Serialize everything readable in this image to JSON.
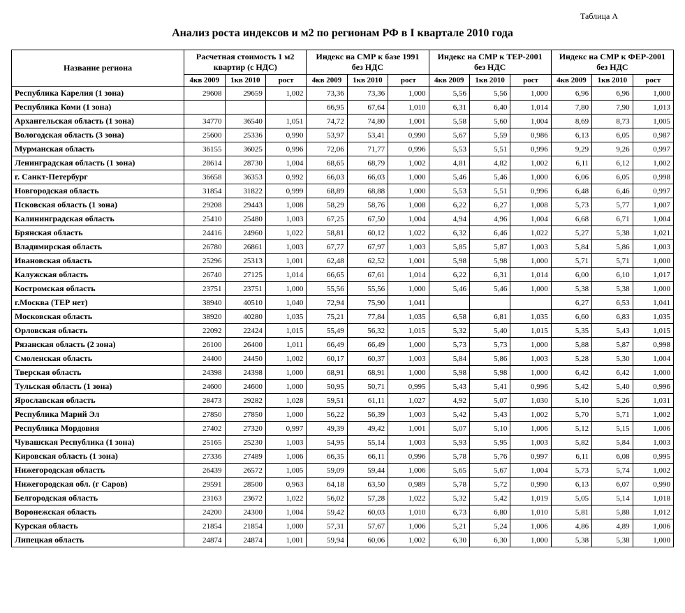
{
  "tableLabel": "Таблица А",
  "title": "Анализ роста индексов и м2 по регионам РФ в I квартале 2010 года",
  "headers": {
    "region": "Название региона",
    "groups": [
      "Расчетная стоимость         1 м2 квартир (с НДС)",
      "Индекс на СМР к базе 1991 без НДС",
      "Индекс на СМР к ТЕР-2001 без НДС",
      "Индекс на СМР к ФЕР-2001 без НДС"
    ],
    "sub": [
      "4кв 2009",
      "1кв 2010",
      "рост"
    ]
  },
  "rows": [
    {
      "region": "Республика Карелия (1 зона)",
      "cells": [
        "29608",
        "29659",
        "1,002",
        "73,36",
        "73,36",
        "1,000",
        "5,56",
        "5,56",
        "1,000",
        "6,96",
        "6,96",
        "1,000"
      ]
    },
    {
      "region": "Республика Коми (1 зона)",
      "cells": [
        "",
        "",
        "",
        "66,95",
        "67,64",
        "1,010",
        "6,31",
        "6,40",
        "1,014",
        "7,80",
        "7,90",
        "1,013"
      ]
    },
    {
      "region": "Архангельская область (1 зона)",
      "cells": [
        "34770",
        "36540",
        "1,051",
        "74,72",
        "74,80",
        "1,001",
        "5,58",
        "5,60",
        "1,004",
        "8,69",
        "8,73",
        "1,005"
      ]
    },
    {
      "region": "Вологодская область (3 зона)",
      "cells": [
        "25600",
        "25336",
        "0,990",
        "53,97",
        "53,41",
        "0,990",
        "5,67",
        "5,59",
        "0,986",
        "6,13",
        "6,05",
        "0,987"
      ]
    },
    {
      "region": "Мурманская область",
      "cells": [
        "36155",
        "36025",
        "0,996",
        "72,06",
        "71,77",
        "0,996",
        "5,53",
        "5,51",
        "0,996",
        "9,29",
        "9,26",
        "0,997"
      ]
    },
    {
      "region": "Ленинградская область (1 зона)",
      "cells": [
        "28614",
        "28730",
        "1,004",
        "68,65",
        "68,79",
        "1,002",
        "4,81",
        "4,82",
        "1,002",
        "6,11",
        "6,12",
        "1,002"
      ]
    },
    {
      "region": "г. Санкт-Петербург",
      "cells": [
        "36658",
        "36353",
        "0,992",
        "66,03",
        "66,03",
        "1,000",
        "5,46",
        "5,46",
        "1,000",
        "6,06",
        "6,05",
        "0,998"
      ]
    },
    {
      "region": "Новгородская область",
      "cells": [
        "31854",
        "31822",
        "0,999",
        "68,89",
        "68,88",
        "1,000",
        "5,53",
        "5,51",
        "0,996",
        "6,48",
        "6,46",
        "0,997"
      ]
    },
    {
      "region": "Псковская область (1 зона)",
      "cells": [
        "29208",
        "29443",
        "1,008",
        "58,29",
        "58,76",
        "1,008",
        "6,22",
        "6,27",
        "1,008",
        "5,73",
        "5,77",
        "1,007"
      ]
    },
    {
      "region": "Калининградская область",
      "cells": [
        "25410",
        "25480",
        "1,003",
        "67,25",
        "67,50",
        "1,004",
        "4,94",
        "4,96",
        "1,004",
        "6,68",
        "6,71",
        "1,004"
      ]
    },
    {
      "region": "Брянская область",
      "cells": [
        "24416",
        "24960",
        "1,022",
        "58,81",
        "60,12",
        "1,022",
        "6,32",
        "6,46",
        "1,022",
        "5,27",
        "5,38",
        "1,021"
      ]
    },
    {
      "region": "Владимирская область",
      "cells": [
        "26780",
        "26861",
        "1,003",
        "67,77",
        "67,97",
        "1,003",
        "5,85",
        "5,87",
        "1,003",
        "5,84",
        "5,86",
        "1,003"
      ]
    },
    {
      "region": "Ивановская область",
      "cells": [
        "25296",
        "25313",
        "1,001",
        "62,48",
        "62,52",
        "1,001",
        "5,98",
        "5,98",
        "1,000",
        "5,71",
        "5,71",
        "1,000"
      ]
    },
    {
      "region": "Калужская область",
      "cells": [
        "26740",
        "27125",
        "1,014",
        "66,65",
        "67,61",
        "1,014",
        "6,22",
        "6,31",
        "1,014",
        "6,00",
        "6,10",
        "1,017"
      ]
    },
    {
      "region": "Костромская область",
      "cells": [
        "23751",
        "23751",
        "1,000",
        "55,56",
        "55,56",
        "1,000",
        "5,46",
        "5,46",
        "1,000",
        "5,38",
        "5,38",
        "1,000"
      ]
    },
    {
      "region": "г.Москва (ТЕР нет)",
      "cells": [
        "38940",
        "40510",
        "1,040",
        "72,94",
        "75,90",
        "1,041",
        "",
        "",
        "",
        "6,27",
        "6,53",
        "1,041"
      ]
    },
    {
      "region": "Московская  область",
      "cells": [
        "38920",
        "40280",
        "1,035",
        "75,21",
        "77,84",
        "1,035",
        "6,58",
        "6,81",
        "1,035",
        "6,60",
        "6,83",
        "1,035"
      ]
    },
    {
      "region": "Орловская область",
      "cells": [
        "22092",
        "22424",
        "1,015",
        "55,49",
        "56,32",
        "1,015",
        "5,32",
        "5,40",
        "1,015",
        "5,35",
        "5,43",
        "1,015"
      ]
    },
    {
      "region": "Рязанская область (2 зона)",
      "cells": [
        "26100",
        "26400",
        "1,011",
        "66,49",
        "66,49",
        "1,000",
        "5,73",
        "5,73",
        "1,000",
        "5,88",
        "5,87",
        "0,998"
      ]
    },
    {
      "region": "Смоленская область",
      "cells": [
        "24400",
        "24450",
        "1,002",
        "60,17",
        "60,37",
        "1,003",
        "5,84",
        "5,86",
        "1,003",
        "5,28",
        "5,30",
        "1,004"
      ]
    },
    {
      "region": "Тверская область",
      "cells": [
        "24398",
        "24398",
        "1,000",
        "68,91",
        "68,91",
        "1,000",
        "5,98",
        "5,98",
        "1,000",
        "6,42",
        "6,42",
        "1,000"
      ]
    },
    {
      "region": "Тульская область (1 зона)",
      "cells": [
        "24600",
        "24600",
        "1,000",
        "50,95",
        "50,71",
        "0,995",
        "5,43",
        "5,41",
        "0,996",
        "5,42",
        "5,40",
        "0,996"
      ]
    },
    {
      "region": "Ярославская область",
      "cells": [
        "28473",
        "29282",
        "1,028",
        "59,51",
        "61,11",
        "1,027",
        "4,92",
        "5,07",
        "1,030",
        "5,10",
        "5,26",
        "1,031"
      ]
    },
    {
      "region": "Республика Марий Эл",
      "cells": [
        "27850",
        "27850",
        "1,000",
        "56,22",
        "56,39",
        "1,003",
        "5,42",
        "5,43",
        "1,002",
        "5,70",
        "5,71",
        "1,002"
      ]
    },
    {
      "region": "Республика Мордовия",
      "cells": [
        "27402",
        "27320",
        "0,997",
        "49,39",
        "49,42",
        "1,001",
        "5,07",
        "5,10",
        "1,006",
        "5,12",
        "5,15",
        "1,006"
      ]
    },
    {
      "region": "Чувашская Республика (1 зона)",
      "cells": [
        "25165",
        "25230",
        "1,003",
        "54,95",
        "55,14",
        "1,003",
        "5,93",
        "5,95",
        "1,003",
        "5,82",
        "5,84",
        "1,003"
      ]
    },
    {
      "region": "Кировская область (1 зона)",
      "cells": [
        "27336",
        "27489",
        "1,006",
        "66,35",
        "66,11",
        "0,996",
        "5,78",
        "5,76",
        "0,997",
        "6,11",
        "6,08",
        "0,995"
      ]
    },
    {
      "region": "Нижегородская область",
      "cells": [
        "26439",
        "26572",
        "1,005",
        "59,09",
        "59,44",
        "1,006",
        "5,65",
        "5,67",
        "1,004",
        "5,73",
        "5,74",
        "1,002"
      ]
    },
    {
      "region": "Нижегородская обл. (г Саров)",
      "cells": [
        "29591",
        "28500",
        "0,963",
        "64,18",
        "63,50",
        "0,989",
        "5,78",
        "5,72",
        "0,990",
        "6,13",
        "6,07",
        "0,990"
      ]
    },
    {
      "region": "Белгородская область",
      "cells": [
        "23163",
        "23672",
        "1,022",
        "56,02",
        "57,28",
        "1,022",
        "5,32",
        "5,42",
        "1,019",
        "5,05",
        "5,14",
        "1,018"
      ]
    },
    {
      "region": "Воронежская область",
      "cells": [
        "24200",
        "24300",
        "1,004",
        "59,42",
        "60,03",
        "1,010",
        "6,73",
        "6,80",
        "1,010",
        "5,81",
        "5,88",
        "1,012"
      ]
    },
    {
      "region": "Курская область",
      "cells": [
        "21854",
        "21854",
        "1,000",
        "57,31",
        "57,67",
        "1,006",
        "5,21",
        "5,24",
        "1,006",
        "4,86",
        "4,89",
        "1,006"
      ]
    },
    {
      "region": "Липецкая область",
      "cells": [
        "24874",
        "24874",
        "1,001",
        "59,94",
        "60,06",
        "1,002",
        "6,30",
        "6,30",
        "1,000",
        "5,38",
        "5,38",
        "1,000"
      ]
    }
  ]
}
